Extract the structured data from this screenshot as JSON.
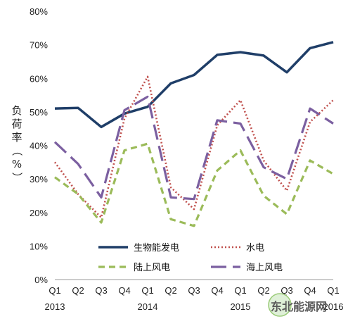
{
  "chart_data": {
    "type": "line",
    "title": "",
    "ylabel_chars": [
      "负",
      "荷",
      "率",
      "（",
      "%",
      "）"
    ],
    "categories": [
      "Q1",
      "Q2",
      "Q3",
      "Q4",
      "Q1",
      "Q2",
      "Q3",
      "Q4",
      "Q1",
      "Q2",
      "Q3",
      "Q4",
      "Q1"
    ],
    "year_labels": [
      {
        "index": 0,
        "label": "2013"
      },
      {
        "index": 4,
        "label": "2014"
      },
      {
        "index": 8,
        "label": "2015"
      },
      {
        "index": 12,
        "label": "2016"
      }
    ],
    "ylim": [
      0,
      80
    ],
    "yticks": [
      0,
      10,
      20,
      30,
      40,
      50,
      60,
      70,
      80
    ],
    "ytick_labels": [
      "0%",
      "10%",
      "20%",
      "30%",
      "40%",
      "50%",
      "60%",
      "70%",
      "80%"
    ],
    "grid": false,
    "legend_placement": "bottom-center",
    "series": [
      {
        "name": "生物能发电",
        "style": "solid",
        "color": "#1f3e68",
        "values": [
          51,
          51.2,
          45.5,
          49.5,
          51.5,
          58.5,
          61,
          67,
          67.8,
          66.8,
          61.8,
          69,
          70.8
        ]
      },
      {
        "name": "水电",
        "style": "dotted",
        "color": "#c0504d",
        "values": [
          35,
          25.5,
          18.5,
          48,
          60.5,
          27.5,
          21,
          46,
          53.5,
          35.5,
          26.5,
          47,
          53.5
        ]
      },
      {
        "name": "陆上风电",
        "style": "dashed",
        "color": "#9bbb59",
        "values": [
          30.5,
          25.5,
          17,
          38.5,
          40.5,
          18,
          16,
          32.5,
          38.5,
          25,
          19.5,
          35.5,
          31.5
        ]
      },
      {
        "name": "海上风电",
        "style": "longdash",
        "color": "#7b5fa0",
        "values": [
          41,
          34.5,
          24.5,
          50.5,
          54.5,
          24.5,
          24,
          47.5,
          46.5,
          33.5,
          30,
          51,
          46.5
        ]
      }
    ]
  },
  "watermark": {
    "text": "东北能源网",
    "lower_text": "Energy"
  }
}
